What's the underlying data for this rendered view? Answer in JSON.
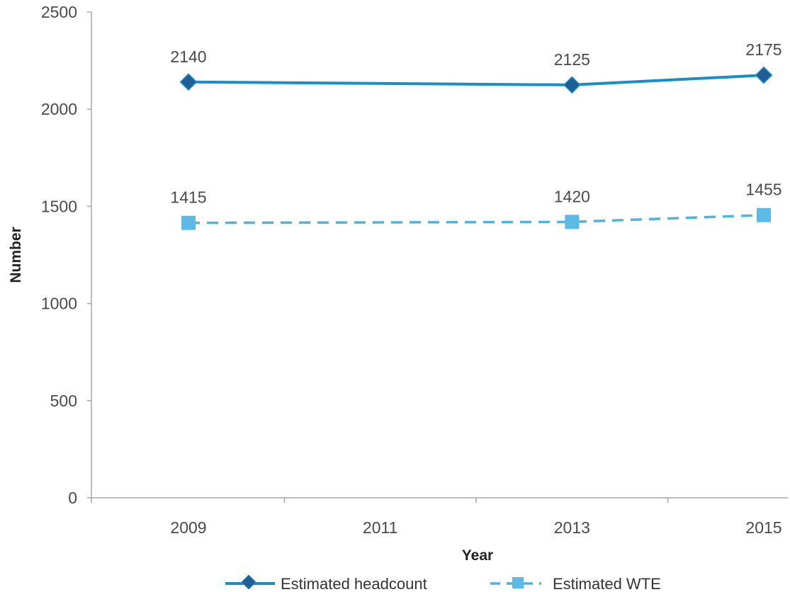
{
  "chart_data": {
    "type": "line",
    "title": "",
    "xlabel": "Year",
    "ylabel": "Number",
    "x_ticks": [
      "2009",
      "2011",
      "2013",
      "2015"
    ],
    "xlim": [
      2009,
      2015
    ],
    "ylim": [
      0,
      2500
    ],
    "y_ticks": [
      0,
      500,
      1000,
      1500,
      2000,
      2500
    ],
    "grid": false,
    "legend_position": "bottom",
    "series": [
      {
        "name": "Estimated headcount",
        "line_style": "solid",
        "marker": "diamond",
        "color": "#1a8cc8",
        "marker_color": "#1f5f95",
        "points": [
          {
            "x": 2009,
            "y": 2140,
            "label": "2140"
          },
          {
            "x": 2013,
            "y": 2125,
            "label": "2125"
          },
          {
            "x": 2015,
            "y": 2175,
            "label": "2175"
          }
        ]
      },
      {
        "name": "Estimated WTE",
        "line_style": "dashed",
        "marker": "square",
        "color": "#4fb3e0",
        "marker_color": "#5bbbe6",
        "points": [
          {
            "x": 2009,
            "y": 1415,
            "label": "1415"
          },
          {
            "x": 2013,
            "y": 1420,
            "label": "1420"
          },
          {
            "x": 2015,
            "y": 1455,
            "label": "1455"
          }
        ]
      }
    ]
  }
}
